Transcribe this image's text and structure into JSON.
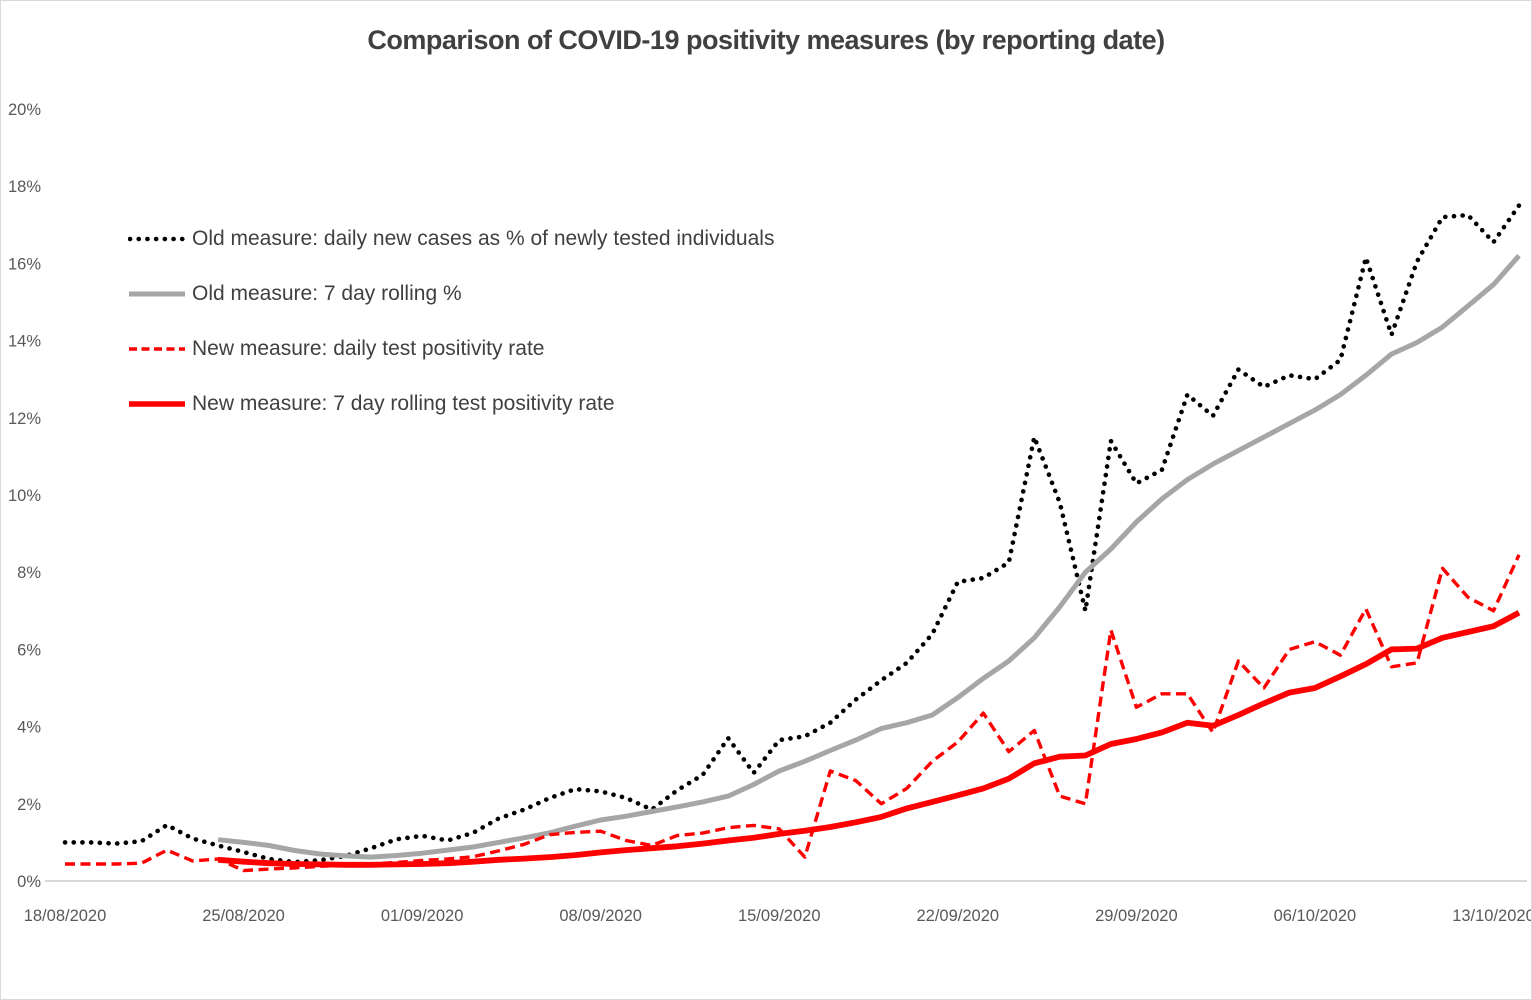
{
  "title": "Comparison of COVID-19 positivity measures (by reporting date)",
  "colors": {
    "title_text": "#404040",
    "axis_text": "#595959",
    "axis_line": "#d9d9d9",
    "black_series": "#000000",
    "gray_series": "#a6a6a6",
    "red_series": "#ff0000",
    "background": "#ffffff"
  },
  "chart_data": {
    "type": "line",
    "title": "Comparison of COVID-19 positivity measures (by reporting date)",
    "x_start_date": "18/08/2020",
    "x_end_date": "14/10/2020",
    "num_days": 58,
    "x_tick_labels": [
      "18/08/2020",
      "25/08/2020",
      "01/09/2020",
      "08/09/2020",
      "15/09/2020",
      "22/09/2020",
      "29/09/2020",
      "06/10/2020",
      "13/10/2020"
    ],
    "x_tick_days": [
      0,
      7,
      14,
      21,
      28,
      35,
      42,
      49,
      56
    ],
    "y_tick_labels": [
      "0%",
      "2%",
      "4%",
      "6%",
      "8%",
      "10%",
      "12%",
      "14%",
      "16%",
      "18%",
      "20%"
    ],
    "y_tick_values": [
      0,
      2,
      4,
      6,
      8,
      10,
      12,
      14,
      16,
      18,
      20
    ],
    "ylim": [
      0,
      20
    ],
    "grid": false,
    "legend_position": "upper-left-inside",
    "series": [
      {
        "name": "Old measure: daily new cases as % of newly tested individuals",
        "line_style": "dotted",
        "color": "#000000",
        "unit": "%",
        "values": [
          1.0,
          1.0,
          0.97,
          1.03,
          1.45,
          1.1,
          0.92,
          0.75,
          0.57,
          0.49,
          0.54,
          0.65,
          0.85,
          1.08,
          1.17,
          1.05,
          1.25,
          1.62,
          1.85,
          2.15,
          2.38,
          2.32,
          2.15,
          1.85,
          2.35,
          2.75,
          3.7,
          2.8,
          3.65,
          3.75,
          4.1,
          4.7,
          5.2,
          5.65,
          6.4,
          7.75,
          7.85,
          8.25,
          11.5,
          9.8,
          7.0,
          11.4,
          10.3,
          10.65,
          12.6,
          12.05,
          13.25,
          12.8,
          13.1,
          13.0,
          13.5,
          16.15,
          14.15,
          16.05,
          17.2,
          17.25,
          16.55,
          17.5
        ]
      },
      {
        "name": "Old measure: 7 day rolling %",
        "line_style": "solid",
        "color": "#a6a6a6",
        "unit": "%",
        "values": [
          null,
          null,
          null,
          null,
          null,
          null,
          1.07,
          1.0,
          0.92,
          0.79,
          0.7,
          0.65,
          0.62,
          0.66,
          0.72,
          0.8,
          0.88,
          1.0,
          1.12,
          1.25,
          1.42,
          1.58,
          1.68,
          1.8,
          1.92,
          2.05,
          2.2,
          2.5,
          2.85,
          3.1,
          3.38,
          3.65,
          3.95,
          4.1,
          4.3,
          4.75,
          5.25,
          5.7,
          6.3,
          7.1,
          8.0,
          8.6,
          9.3,
          9.9,
          10.4,
          10.8,
          11.15,
          11.5,
          11.85,
          12.2,
          12.6,
          13.1,
          13.65,
          13.95,
          14.35,
          14.9,
          15.45,
          16.2
        ]
      },
      {
        "name": "New measure: daily test positivity rate",
        "line_style": "dashed",
        "color": "#ff0000",
        "unit": "%",
        "values": [
          0.44,
          0.44,
          0.44,
          0.46,
          0.8,
          0.52,
          0.57,
          0.27,
          0.31,
          0.34,
          0.38,
          0.41,
          0.44,
          0.48,
          0.53,
          0.57,
          0.63,
          0.78,
          0.95,
          1.2,
          1.26,
          1.29,
          1.05,
          0.92,
          1.18,
          1.24,
          1.38,
          1.44,
          1.35,
          0.62,
          2.85,
          2.6,
          2.0,
          2.4,
          3.1,
          3.6,
          4.35,
          3.35,
          3.9,
          2.2,
          2.0,
          6.5,
          4.5,
          4.85,
          4.85,
          3.85,
          5.7,
          5.0,
          6.0,
          6.2,
          5.85,
          7.05,
          5.55,
          5.65,
          8.1,
          7.35,
          7.0,
          8.45
        ]
      },
      {
        "name": "New measure: 7 day rolling test positivity rate",
        "line_style": "solid-thick",
        "color": "#ff0000",
        "unit": "%",
        "values": [
          null,
          null,
          null,
          null,
          null,
          null,
          0.55,
          0.5,
          0.46,
          0.44,
          0.43,
          0.42,
          0.42,
          0.43,
          0.44,
          0.46,
          0.5,
          0.55,
          0.58,
          0.62,
          0.67,
          0.74,
          0.8,
          0.85,
          0.9,
          0.97,
          1.05,
          1.12,
          1.22,
          1.3,
          1.4,
          1.52,
          1.66,
          1.88,
          2.05,
          2.22,
          2.4,
          2.65,
          3.05,
          3.22,
          3.25,
          3.55,
          3.68,
          3.85,
          4.1,
          4.02,
          4.3,
          4.6,
          4.88,
          5.0,
          5.3,
          5.62,
          6.0,
          6.02,
          6.3,
          6.45,
          6.6,
          6.95
        ]
      }
    ]
  }
}
